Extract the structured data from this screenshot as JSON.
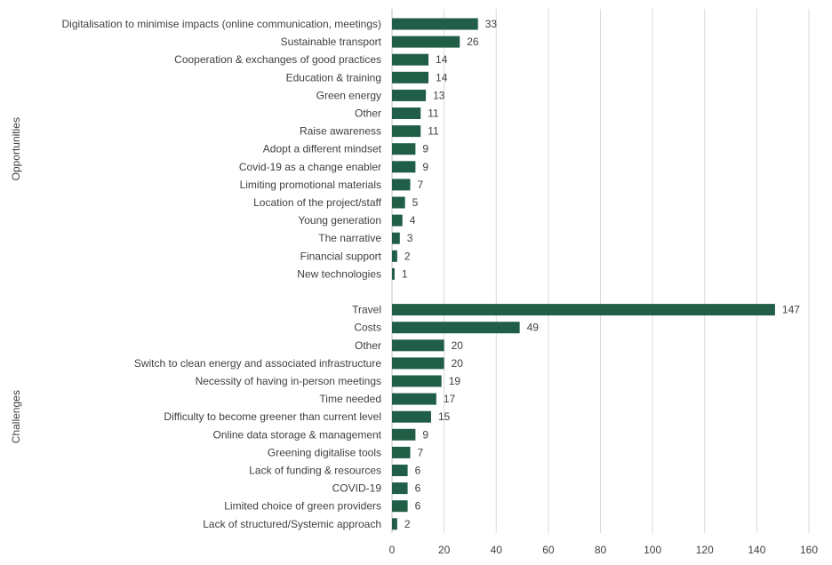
{
  "chart_data": {
    "type": "bar",
    "orientation": "horizontal",
    "title": "",
    "xlabel": "",
    "ylabel": "",
    "xlim": [
      0,
      160
    ],
    "xticks": [
      0,
      20,
      40,
      60,
      80,
      100,
      120,
      140,
      160
    ],
    "grid": true,
    "bar_color": "#215e47",
    "groups": [
      {
        "name": "Opportunities",
        "categories": [
          "Digitalisation to minimise impacts (online communication, meetings)",
          "Sustainable transport",
          "Cooperation & exchanges of good practices",
          "Education & training",
          "Green energy",
          "Other",
          "Raise awareness",
          "Adopt a different mindset",
          "Covid-19 as a change enabler",
          "Limiting promotional materials",
          "Location of the project/staff",
          "Young generation",
          "The narrative",
          "Financial support",
          "New technologies"
        ],
        "values": [
          33,
          26,
          14,
          14,
          13,
          11,
          11,
          9,
          9,
          7,
          5,
          4,
          3,
          2,
          1
        ]
      },
      {
        "name": "Challenges",
        "categories": [
          "Travel",
          "Costs",
          "Other",
          "Switch to clean energy and associated infrastructure",
          "Necessity of having in-person meetings",
          "Time needed",
          "Difficulty to become greener than current level",
          "Online data storage & management",
          "Greening digitalise tools",
          "Lack of funding & resources",
          "COVID-19",
          "Limited choice of green providers",
          "Lack of structured/Systemic approach"
        ],
        "values": [
          147,
          49,
          20,
          20,
          19,
          17,
          15,
          9,
          7,
          6,
          6,
          6,
          2
        ]
      }
    ]
  }
}
